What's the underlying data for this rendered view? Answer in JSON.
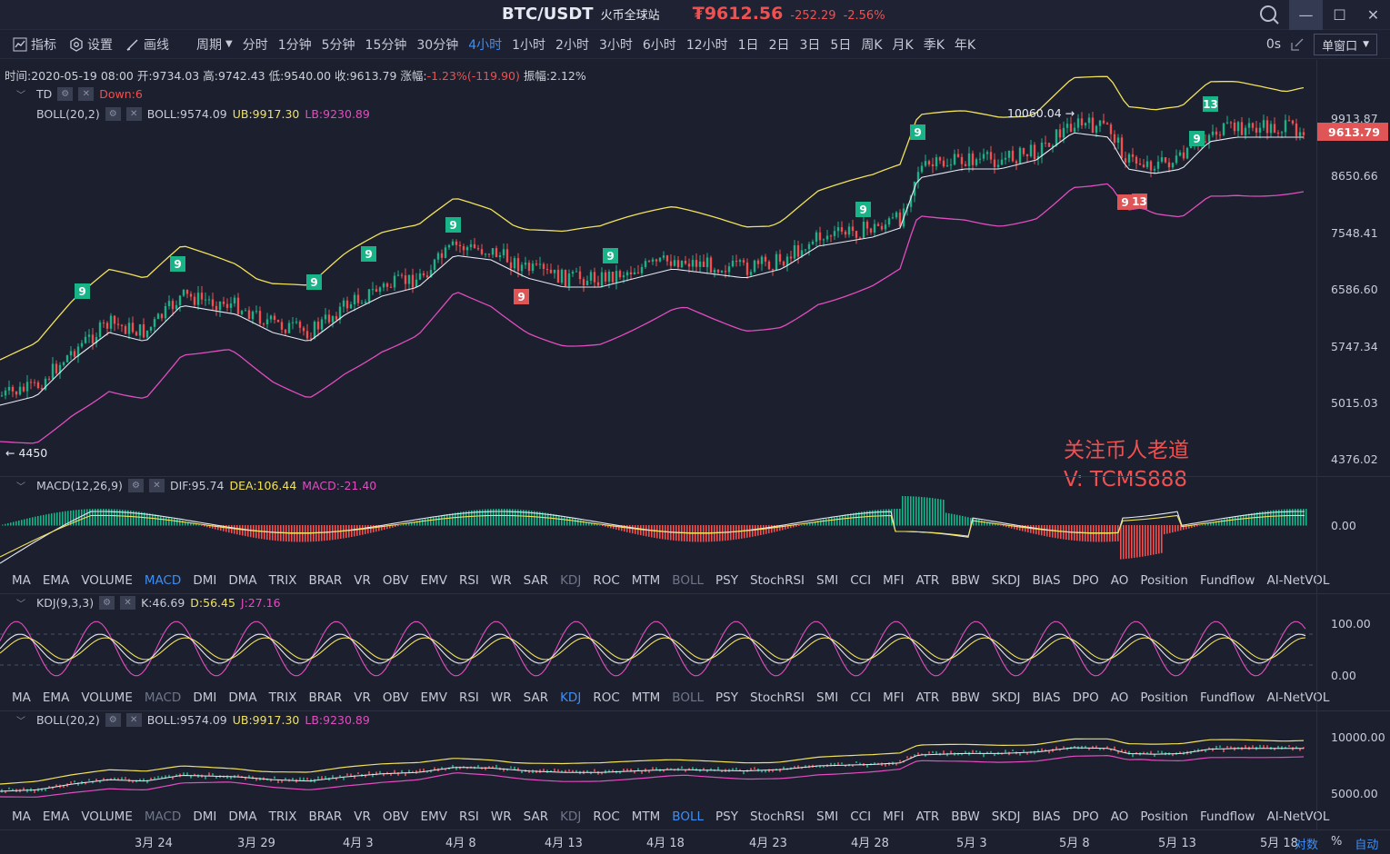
{
  "title": {
    "pair": "BTC/USDT",
    "exchange": "火币全球站",
    "price": "₮9612.56",
    "change": "-252.29",
    "change_pct": "-2.56%"
  },
  "window": {
    "minimize": "—",
    "maximize": "☐",
    "close": "✕"
  },
  "toolbar": {
    "indicators": "指标",
    "settings": "设置",
    "draw": "画线",
    "period": "周期",
    "periods": [
      "分时",
      "1分钟",
      "5分钟",
      "15分钟",
      "30分钟",
      "4小时",
      "1小时",
      "2小时",
      "3小时",
      "6小时",
      "12小时",
      "1日",
      "2日",
      "3日",
      "5日",
      "周K",
      "月K",
      "季K",
      "年K"
    ],
    "active_period": "4小时",
    "countdown": "0s",
    "window_mode": "单窗口"
  },
  "info": {
    "time": "时间:2020-05-19 08:00",
    "open": "开:9734.03",
    "high": "高:9742.43",
    "low": "低:9540.00",
    "close": "收:9613.79",
    "chg_label": "涨幅:",
    "chg_value": "-1.23%(-119.90)",
    "amp": "振幅:2.12%"
  },
  "main": {
    "td_label": "TD",
    "td_value": "Down:6",
    "boll_label": "BOLL(20,2)",
    "boll_value": "BOLL:9574.09",
    "boll_ub": "UB:9917.30",
    "boll_lb": "LB:9230.89",
    "axis": [
      "9913.87",
      "8650.66",
      "7548.41",
      "6586.60",
      "5747.34",
      "5015.03",
      "4376.02"
    ],
    "last_price": "9613.79",
    "high_annot": "10060.04 →",
    "low_annot": "← 4450",
    "td_badges": [
      {
        "t": "9",
        "c": "g"
      },
      {
        "t": "9",
        "c": "g"
      },
      {
        "t": "9",
        "c": "g"
      },
      {
        "t": "9",
        "c": "g"
      },
      {
        "t": "9",
        "c": "g"
      },
      {
        "t": "9",
        "c": "r"
      },
      {
        "t": "9",
        "c": "g"
      },
      {
        "t": "9",
        "c": "g"
      },
      {
        "t": "9",
        "c": "g"
      },
      {
        "t": "13",
        "c": "g"
      },
      {
        "t": "9",
        "c": "g"
      },
      {
        "t": "9",
        "c": "r"
      },
      {
        "t": "13",
        "c": "r"
      }
    ]
  },
  "watermark": {
    "line1": "关注币人老道",
    "line2": "V: TCMS888"
  },
  "macd": {
    "label": "MACD(12,26,9)",
    "dif": "DIF:95.74",
    "dea": "DEA:106.44",
    "macd": "MACD:-21.40",
    "axis": [
      "0.00"
    ]
  },
  "kdj": {
    "label": "KDJ(9,3,3)",
    "k": "K:46.69",
    "d": "D:56.45",
    "j": "J:27.16",
    "axis": [
      "100.00",
      "0.00"
    ]
  },
  "boll2": {
    "label": "BOLL(20,2)",
    "value": "BOLL:9574.09",
    "ub": "UB:9917.30",
    "lb": "LB:9230.89",
    "axis": [
      "10000.00",
      "5000.00"
    ]
  },
  "indicator_tabs": [
    "MA",
    "EMA",
    "VOLUME",
    "MACD",
    "DMI",
    "DMA",
    "TRIX",
    "BRAR",
    "VR",
    "OBV",
    "EMV",
    "RSI",
    "WR",
    "SAR",
    "KDJ",
    "ROC",
    "MTM",
    "BOLL",
    "PSY",
    "StochRSI",
    "SMI",
    "CCI",
    "MFI",
    "ATR",
    "BBW",
    "SKDJ",
    "BIAS",
    "DPO",
    "AO",
    "Position",
    "Fundflow",
    "AI-NetVOL"
  ],
  "dates": [
    "3月 24",
    "3月 29",
    "4月 3",
    "4月 8",
    "4月 13",
    "4月 18",
    "4月 23",
    "4月 28",
    "5月 3",
    "5月 8",
    "5月 13",
    "5月 18"
  ],
  "scale": {
    "log": "对数",
    "pct": "%",
    "auto": "自动"
  },
  "colors": {
    "up": "#18b488",
    "down": "#f0504f",
    "ub": "#f2e25a",
    "lb": "#e24dbf",
    "mid": "#e6e9f2",
    "accent": "#3d8ff6"
  }
}
